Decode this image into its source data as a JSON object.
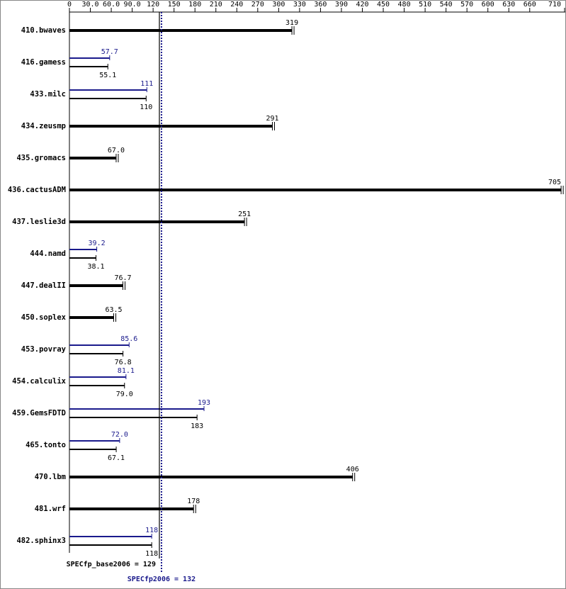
{
  "chart_data": {
    "type": "bar",
    "categories": [
      "410.bwaves",
      "416.gamess",
      "433.milc",
      "434.zeusmp",
      "435.gromacs",
      "436.cactusADM",
      "437.leslie3d",
      "444.namd",
      "447.dealII",
      "450.soplex",
      "453.povray",
      "454.calculix",
      "459.GemsFDTD",
      "465.tonto",
      "470.lbm",
      "481.wrf",
      "482.sphinx3"
    ],
    "series": [
      {
        "color": "#000000",
        "values": [
          319,
          55.1,
          110,
          291,
          67,
          705,
          251,
          38.1,
          76.7,
          63.5,
          76.8,
          79,
          183,
          67.1,
          406,
          178,
          118
        ],
        "value_labels": [
          "319",
          "55.1",
          "110",
          "291",
          "67.0",
          "705",
          "251",
          "38.1",
          "76.7",
          "63.5",
          "76.8",
          "79.0",
          "183",
          "67.1",
          "406",
          "178",
          "118"
        ]
      },
      {
        "color": "#1a1a8c",
        "values": [
          null,
          57.7,
          111,
          null,
          null,
          null,
          null,
          39.2,
          null,
          null,
          85.6,
          81.1,
          193,
          72,
          null,
          null,
          118
        ],
        "value_labels": [
          null,
          "57.7",
          "111",
          null,
          null,
          null,
          null,
          "39.2",
          null,
          null,
          "85.6",
          "81.1",
          "193",
          "72.0",
          null,
          null,
          "118"
        ]
      }
    ],
    "xlim": [
      0,
      711
    ],
    "xticks": [
      0,
      {
        "value": 30,
        "label": "30.0"
      },
      {
        "value": 60,
        "label": "60.0"
      },
      {
        "value": 90,
        "label": "90.0"
      },
      120,
      150,
      180,
      210,
      240,
      270,
      300,
      330,
      360,
      390,
      420,
      450,
      480,
      510,
      540,
      570,
      600,
      630,
      660,
      710
    ],
    "reference_lines": [
      {
        "label": "SPECfp_base2006 = 129",
        "value": 129,
        "color": "#000000",
        "style": "solid"
      },
      {
        "label": "SPECfp2006 = 132",
        "value": 132,
        "color": "#1a1a8c",
        "style": "dotted"
      }
    ]
  }
}
